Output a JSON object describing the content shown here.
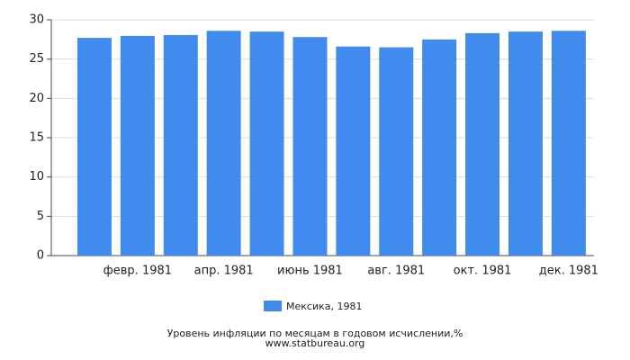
{
  "chart_data": {
    "type": "bar",
    "categories": [
      null,
      "февр. 1981",
      null,
      "апр. 1981",
      null,
      "июнь 1981",
      null,
      "авг. 1981",
      null,
      "окт. 1981",
      null,
      "дек. 1981"
    ],
    "series": [
      {
        "name": "Мексика, 1981",
        "color": "#428bee",
        "values": [
          27.7,
          27.95,
          28.06,
          28.6,
          28.5,
          27.8,
          26.6,
          26.5,
          27.5,
          28.3,
          28.5,
          28.6
        ]
      }
    ],
    "ylim": [
      0,
      30
    ],
    "yticks": [
      0,
      5,
      10,
      15,
      20,
      25,
      30
    ],
    "grid": true,
    "caption": "Уровень инфляции по месяцам в годовом исчислении,%",
    "source": "www.statbureau.org"
  }
}
